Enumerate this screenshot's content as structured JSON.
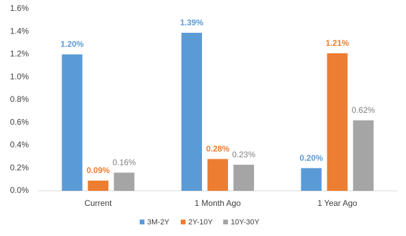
{
  "chart_data": {
    "type": "bar",
    "categories": [
      "Current",
      "1 Month Ago",
      "1 Year Ago"
    ],
    "series": [
      {
        "name": "3M-2Y",
        "color": "#5b9bd5",
        "values": [
          1.2,
          1.39,
          0.2
        ],
        "value_labels": [
          "1.20%",
          "1.39%",
          "0.20%"
        ]
      },
      {
        "name": "2Y-10Y",
        "color": "#ed7d31",
        "values": [
          0.09,
          0.28,
          1.21
        ],
        "value_labels": [
          "0.09%",
          "0.28%",
          "1.21%"
        ]
      },
      {
        "name": "10Y-30Y",
        "color": "#a5a5a5",
        "values": [
          0.16,
          0.23,
          0.62
        ],
        "value_labels": [
          "0.16%",
          "0.23%",
          "0.62%"
        ]
      }
    ],
    "ylim": [
      0,
      1.6
    ],
    "yticks": [
      {
        "value": 0,
        "label": "0.0%"
      },
      {
        "value": 0.2,
        "label": "0.2%"
      },
      {
        "value": 0.4,
        "label": "0.4%"
      },
      {
        "value": 0.6,
        "label": "0.6%"
      },
      {
        "value": 0.8,
        "label": "0.8%"
      },
      {
        "value": 1.0,
        "label": "1.0%"
      },
      {
        "value": 1.2,
        "label": "1.2%"
      },
      {
        "value": 1.4,
        "label": "1.4%"
      },
      {
        "value": 1.6,
        "label": "1.6%"
      }
    ],
    "grid": false,
    "legend": "bottom"
  }
}
